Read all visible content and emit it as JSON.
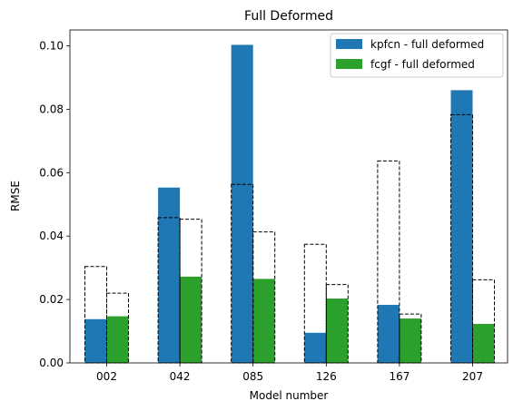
{
  "chart_data": {
    "type": "bar",
    "title": "Full Deformed",
    "xlabel": "Model number",
    "ylabel": "RMSE",
    "categories": [
      "002",
      "042",
      "085",
      "126",
      "167",
      "207"
    ],
    "ylim": [
      0,
      0.105
    ],
    "yticks": [
      0.0,
      0.02,
      0.04,
      0.06,
      0.08,
      0.1
    ],
    "yticklabels": [
      "0.00",
      "0.02",
      "0.04",
      "0.06",
      "0.08",
      "0.10"
    ],
    "grid": false,
    "legend_position": "top-right",
    "series": [
      {
        "name": "kpfcn - full deformed",
        "color": "#1f77b4",
        "values": [
          0.0138,
          0.0553,
          0.1003,
          0.0095,
          0.0183,
          0.086
        ]
      },
      {
        "name": "fcgf - full deformed",
        "color": "#2ca02c",
        "values": [
          0.0147,
          0.0272,
          0.0265,
          0.0203,
          0.014,
          0.0123
        ]
      }
    ],
    "dashed_outlines": [
      {
        "values": [
          0.0304,
          0.0458,
          0.0563,
          0.0374,
          0.0637,
          0.0783
        ]
      },
      {
        "values": [
          0.022,
          0.0453,
          0.0413,
          0.0247,
          0.0154,
          0.0262
        ]
      }
    ]
  }
}
